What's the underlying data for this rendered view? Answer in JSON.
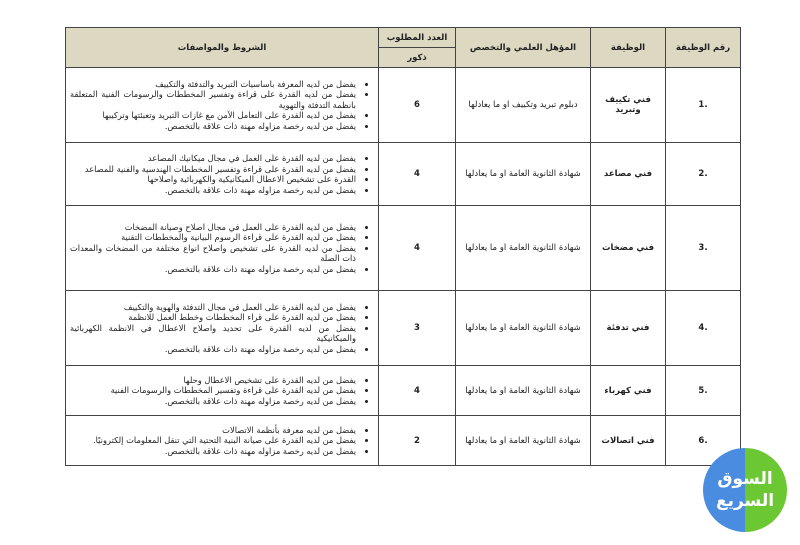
{
  "header": {
    "number": "رقم الوظيفة",
    "job": "الوظيفة",
    "qualification": "المؤهل العلمي والتخصص",
    "count": "العدد المطلوب",
    "count_sub": "ذكور",
    "conditions": "الشروط والمواصفات"
  },
  "rows": [
    {
      "number": ".1",
      "job": "فني تكييف وتبريد",
      "qualification": "دبلوم تبريد وتكييف او ما يعادلها",
      "count": "6",
      "conditions": [
        "يفضل من لديه المعرفة باساسيات التبريد والتدفئة والتكييف",
        "يفضل من لديه القدرة على قراءة وتفسير المخططات والرسومات الفنية المتعلقة بانظمة التدفئة والتهوية",
        "يفضل من لديه القدرة على التعامل الآمن مع غازات التبريد وتعبئتها وتركيبها",
        "يفضل من لديه رخصة مزاوله مهنة ذات علاقة بالتخصص."
      ]
    },
    {
      "number": ".2",
      "job": "فني مصاعد",
      "qualification": "شهادة الثانوية العامة او ما يعادلها",
      "count": "4",
      "conditions": [
        "يفضل من لديه القدرة على العمل في مجال ميكانيك المصاعد",
        "يفضل من لديه القدرة على قراءة وتفسير المخططات الهندسية والفنية للمصاعد",
        "القدرة على تشخيص الاعطال الميكانيكية والكهربائية واصلاحها",
        "يفضل من لديه رخصة مزاوله مهنة ذات علاقة بالتخصص."
      ]
    },
    {
      "number": ".3",
      "job": "فني مضخات",
      "qualification": "شهادة الثانوية العامة او ما يعادلها",
      "count": "4",
      "conditions": [
        "يفضل من لديه القدرة على العمل في مجال اصلاح وصيانة المضخات",
        "يفضل من لديه القدرة على قراءة الرسوم البيانية والمخططات التقنية",
        "يفضل من لديه القدرة على تشخيص واصلاح انواع مختلفة من المضخات والمعدات ذات الصلة",
        "يفضل من لديه رخصة مزاوله مهنة ذات علاقة بالتخصص."
      ]
    },
    {
      "number": ".4",
      "job": "فني تدفئة",
      "qualification": "شهادة الثانوية العامة او ما يعادلها",
      "count": "3",
      "conditions": [
        "يفضل من لديه القدرة على العمل في مجال التدفئة والهوية والتكييف",
        "يفضل من لديه القدرة على قراء المخططات وخطط العمل للانظمة",
        "يفضل من لديه القدرة على تحديد واصلاح الاعطال في الانظمة الكهربائية والميكانيكية",
        "يفضل من لديه رخصة مزاوله مهنة ذات علاقة بالتخصص."
      ]
    },
    {
      "number": ".5",
      "job": "فني كهرباء",
      "qualification": "شهادة الثانوية العامة او ما يعادلها",
      "count": "4",
      "conditions": [
        "يفضل من لديه القدرة على تشخيص الاعطال وحلها",
        "يفضل من لديه القدرة على قراءة وتفسير المخططات والرسومات الفنية",
        "يفضل من لديه رخصة مزاوله مهنة ذات علاقة بالتخصص."
      ]
    },
    {
      "number": ".6",
      "job": "فني اتصالات",
      "qualification": "شهادة الثانوية العامة او ما يعادلها",
      "count": "2",
      "conditions": [
        "يفضل من لديه معرفة بأنظمة الاتصالات",
        "يفضل من لديه القدرة على صيانة البنية التحتية التي تنقل المعلومات إلكترونيًا.",
        "يفضل من لديه رخصة مزاوله مهنة ذات علاقة بالتخصص."
      ]
    }
  ],
  "logo": {
    "line1": "السوق",
    "line2": "السريع",
    "colors": {
      "left": "#4a8de0",
      "right": "#6cc832"
    }
  }
}
